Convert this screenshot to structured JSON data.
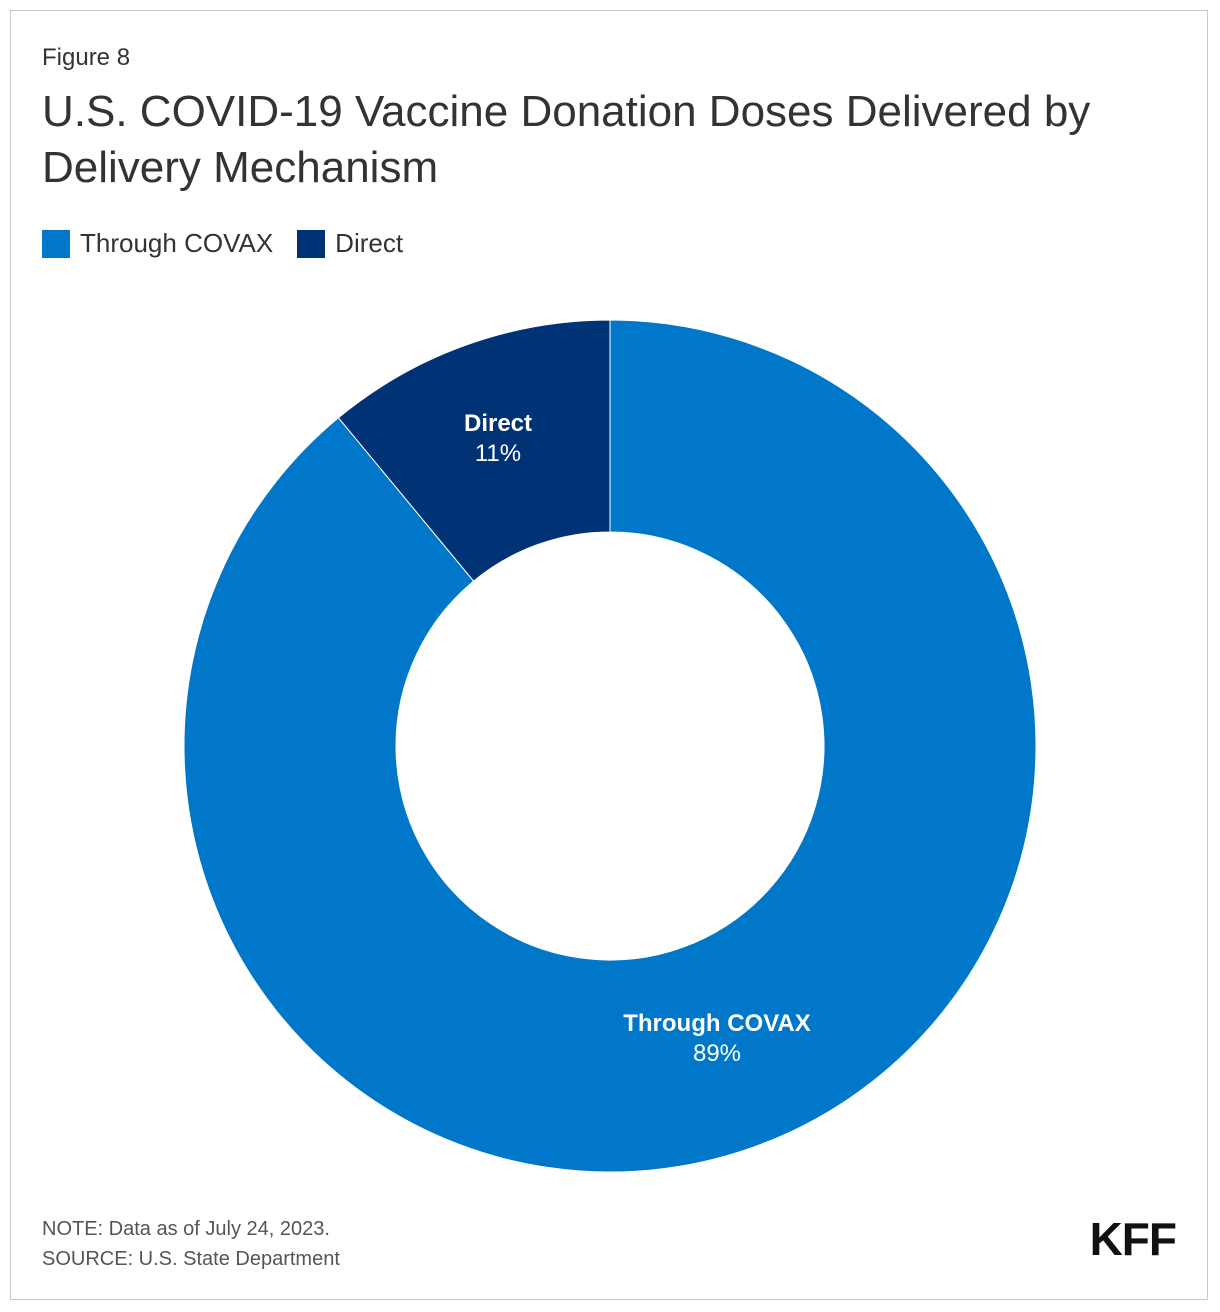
{
  "figure_label": "Figure 8",
  "title": "U.S. COVID-19 Vaccine Donation Doses Delivered by Delivery Mechanism",
  "legend": [
    {
      "label": "Through COVAX",
      "color": "#0077c8"
    },
    {
      "label": "Direct",
      "color": "#003375"
    }
  ],
  "chart_data": {
    "type": "pie",
    "variant": "donut",
    "title": "U.S. COVID-19 Vaccine Donation Doses Delivered by Delivery Mechanism",
    "legend_position": "top-left",
    "slices": [
      {
        "name": "Through COVAX",
        "value": 89,
        "label": "89%",
        "color": "#0077c8"
      },
      {
        "name": "Direct",
        "value": 11,
        "label": "11%",
        "color": "#003375"
      }
    ]
  },
  "footer": {
    "note": "NOTE: Data as of July 24, 2023.",
    "source": "SOURCE: U.S. State Department"
  },
  "logo_text": "KFF"
}
